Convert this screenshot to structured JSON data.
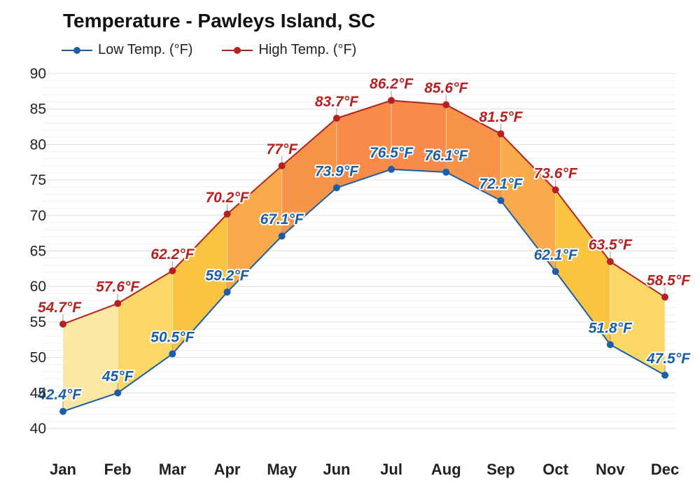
{
  "chart_data": {
    "type": "line",
    "title": "Temperature - Pawleys Island, SC",
    "categories": [
      "Jan",
      "Feb",
      "Mar",
      "Apr",
      "May",
      "Jun",
      "Jul",
      "Aug",
      "Sep",
      "Oct",
      "Nov",
      "Dec"
    ],
    "series": [
      {
        "name": "Low Temp. (°F)",
        "values": [
          42.4,
          45,
          50.5,
          59.2,
          67.1,
          73.9,
          76.5,
          76.1,
          72.1,
          62.1,
          51.8,
          47.5
        ],
        "labels": [
          "42.4°F",
          "45°F",
          "50.5°F",
          "59.2°F",
          "67.1°F",
          "73.9°F",
          "76.5°F",
          "76.1°F",
          "72.1°F",
          "62.1°F",
          "51.8°F",
          "47.5°F"
        ],
        "color": "#1a5fa6"
      },
      {
        "name": "High Temp. (°F)",
        "values": [
          54.7,
          57.6,
          62.2,
          70.2,
          77,
          83.7,
          86.2,
          85.6,
          81.5,
          73.6,
          63.5,
          58.5
        ],
        "labels": [
          "54.7°F",
          "57.6°F",
          "62.2°F",
          "70.2°F",
          "77°F",
          "83.7°F",
          "86.2°F",
          "85.6°F",
          "81.5°F",
          "73.6°F",
          "63.5°F",
          "58.5°F"
        ],
        "color": "#b42222"
      }
    ],
    "ylim": [
      40,
      90
    ],
    "yticks": [
      "40",
      "45",
      "50",
      "55",
      "60",
      "65",
      "70",
      "75",
      "80",
      "85",
      "90"
    ],
    "grid": true,
    "legend_position": "top-left",
    "band_colors": [
      "#fbe6a3",
      "#fbd866",
      "#fac443",
      "#f9ab4b",
      "#f89449",
      "#f88b49",
      "#f88b49",
      "#f89449",
      "#f9ab4b",
      "#fac443",
      "#fbd866",
      "#fbe6a3"
    ],
    "band_colors_note_free": true
  }
}
